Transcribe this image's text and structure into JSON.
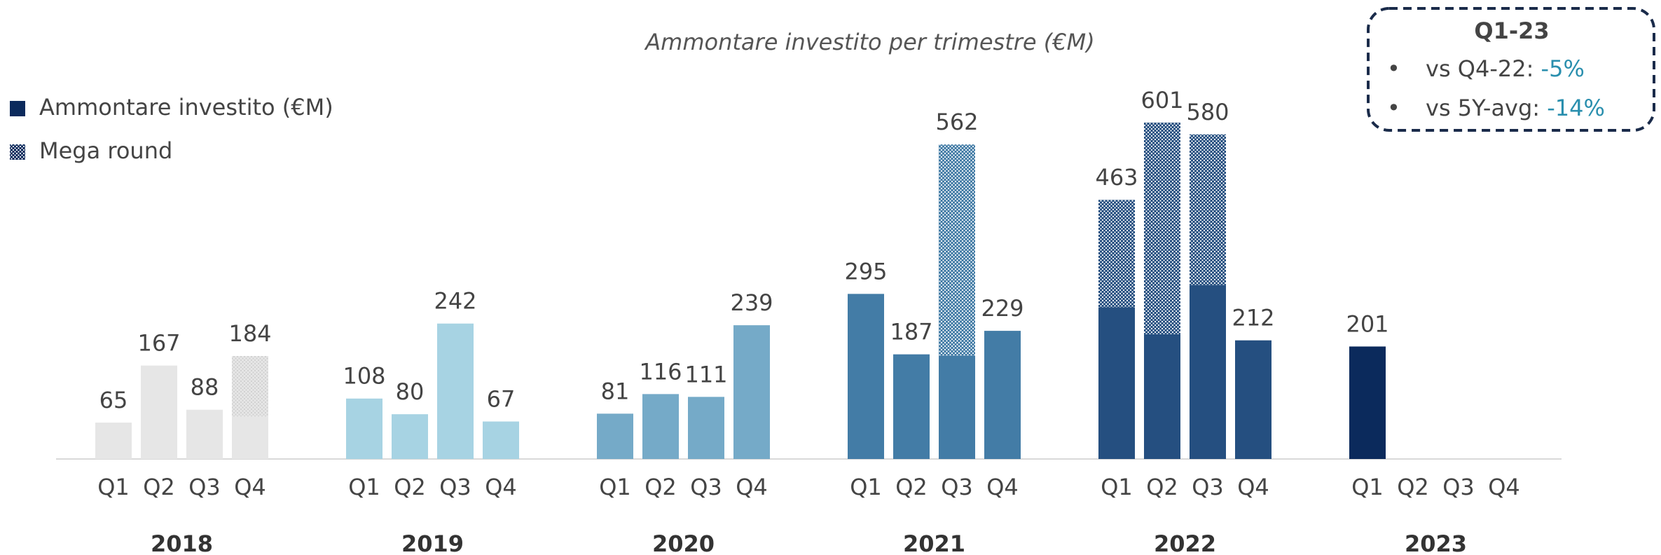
{
  "chart_data": {
    "type": "bar",
    "title": "Ammontare investito per trimestre (€M)",
    "categories": [
      "Q1",
      "Q2",
      "Q3",
      "Q4",
      "Q1",
      "Q2",
      "Q3",
      "Q4",
      "Q1",
      "Q2",
      "Q3",
      "Q4",
      "Q1",
      "Q2",
      "Q3",
      "Q4",
      "Q1",
      "Q2",
      "Q3",
      "Q4",
      "Q1",
      "Q2",
      "Q3",
      "Q4"
    ],
    "groups": [
      {
        "name": "2018",
        "color": "#e6e6e6"
      },
      {
        "name": "2019",
        "color": "#a7d3e3"
      },
      {
        "name": "2020",
        "color": "#75aac8"
      },
      {
        "name": "2021",
        "color": "#437ca6"
      },
      {
        "name": "2022",
        "color": "#254f80"
      },
      {
        "name": "2023",
        "color": "#0b2a5c"
      }
    ],
    "series": [
      {
        "name": "Ammontare investito (€M)",
        "color": "#0b2a5c",
        "values": [
          65,
          167,
          88,
          76,
          108,
          80,
          242,
          67,
          81,
          116,
          111,
          239,
          295,
          187,
          185,
          229,
          271,
          223,
          311,
          212,
          201,
          null,
          null,
          null
        ]
      },
      {
        "name": "Mega round",
        "color": "#0b2a5c",
        "pattern": "dots",
        "values": [
          null,
          null,
          null,
          108,
          null,
          null,
          null,
          null,
          null,
          null,
          null,
          null,
          null,
          null,
          377,
          null,
          192,
          378,
          269,
          null,
          null,
          null,
          null,
          null
        ]
      }
    ],
    "value_labels": [
      "65",
      "167",
      "88",
      "184",
      "108",
      "80",
      "242",
      "67",
      "81",
      "116",
      "111",
      "239",
      "295",
      "187",
      "562",
      "229",
      "463",
      "601",
      "580",
      "212",
      "201",
      null,
      null,
      null
    ],
    "legend": "top-left",
    "callout": {
      "title": "Q1-23",
      "items": [
        {
          "label": "vs Q4-22:",
          "value": "-5%"
        },
        {
          "label": "vs 5Y-avg:",
          "value": "-14%"
        }
      ]
    }
  }
}
